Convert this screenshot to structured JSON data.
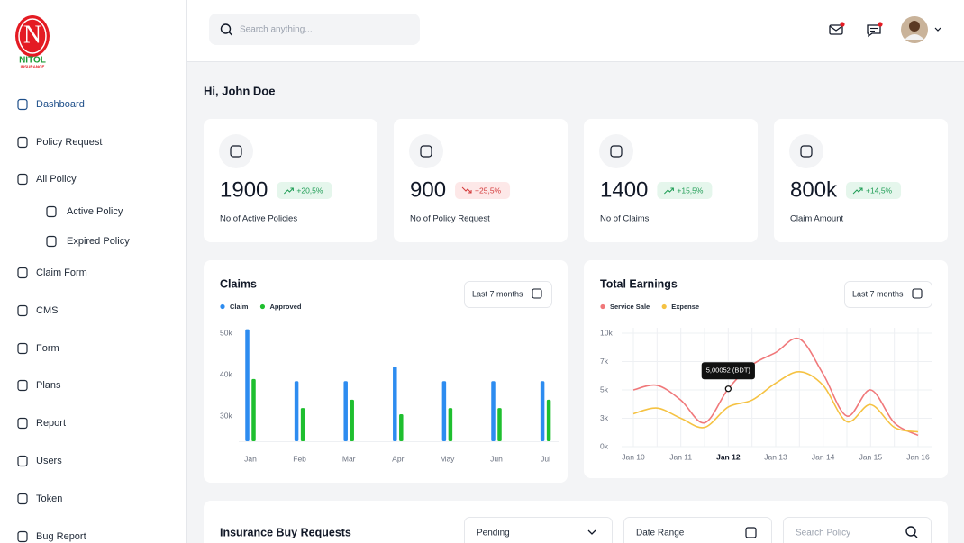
{
  "logo": {
    "mark": "N",
    "name": "NITOL",
    "tagline": "INSURANCE"
  },
  "sidebar": {
    "items": [
      {
        "label": "Dashboard",
        "active": true
      },
      {
        "label": "Policy Request"
      },
      {
        "label": "All Policy"
      },
      {
        "label": "Active Policy",
        "sub": true
      },
      {
        "label": "Expired Policy",
        "sub": true
      },
      {
        "label": "Claim Form"
      },
      {
        "label": "CMS"
      },
      {
        "label": "Form"
      },
      {
        "label": "Plans"
      },
      {
        "label": "Report"
      },
      {
        "label": "Users"
      },
      {
        "label": "Token"
      },
      {
        "label": "Bug Report"
      }
    ]
  },
  "header": {
    "search_placeholder": "Search anything..."
  },
  "greeting": "Hi, John Doe",
  "stats": [
    {
      "value": "1900",
      "change": "+20,5%",
      "trend": "up",
      "label": "No of Active Policies"
    },
    {
      "value": "900",
      "change": "+25,5%",
      "trend": "down",
      "label": "No of Policy Request"
    },
    {
      "value": "1400",
      "change": "+15,5%",
      "trend": "up",
      "label": "No of Claims"
    },
    {
      "value": "800k",
      "change": "+14,5%",
      "trend": "up",
      "label": "Claim Amount"
    }
  ],
  "chart_data": [
    {
      "type": "bar",
      "title": "Claims",
      "filter": "Last 7 months",
      "categories": [
        "Jan",
        "Feb",
        "Mar",
        "Apr",
        "May",
        "Jun",
        "Jul"
      ],
      "series": [
        {
          "name": "Claim",
          "color": "#2d8cf0",
          "values": [
            51000,
            38500,
            38500,
            42000,
            38500,
            38500,
            38500
          ]
        },
        {
          "name": "Approved",
          "color": "#1fbf2f",
          "values": [
            39000,
            32000,
            34000,
            30500,
            32000,
            32000,
            34000
          ]
        }
      ],
      "ylim": [
        24000,
        52000
      ],
      "yticks": [
        {
          "value": 30000,
          "label": "30k"
        },
        {
          "value": 40000,
          "label": "40k"
        },
        {
          "value": 50000,
          "label": "50k"
        }
      ],
      "grid": false
    },
    {
      "type": "line",
      "title": "Total Earnings",
      "filter": "Last 7 months",
      "categories": [
        "Jan 10",
        null,
        "Jan 11",
        null,
        "Jan 12",
        null,
        "Jan 13",
        null,
        "Jan 14",
        null,
        "Jan 15",
        null,
        "Jan 16"
      ],
      "series": [
        {
          "name": "Service Sale",
          "color": "#f0787a",
          "values": [
            5000,
            5400,
            4100,
            2100,
            5100,
            7200,
            8300,
            9500,
            6400,
            2700,
            5000,
            2100,
            1000
          ]
        },
        {
          "name": "Expense",
          "color": "#f5c242",
          "values": [
            2900,
            3400,
            2500,
            1700,
            3500,
            4100,
            5600,
            6600,
            5400,
            2200,
            3700,
            1700,
            1300
          ]
        }
      ],
      "ylim": [
        0,
        10000
      ],
      "yticks": [
        {
          "value": 0,
          "label": "0k"
        },
        {
          "value": 2500,
          "label": "3k"
        },
        {
          "value": 5000,
          "label": "5k"
        },
        {
          "value": 7500,
          "label": "7k"
        },
        {
          "value": 10000,
          "label": "10k"
        }
      ],
      "grid": true,
      "tooltip": {
        "label": "5,00052 (BDT)",
        "category": "Jan 12",
        "series": "Service Sale"
      }
    }
  ],
  "requests": {
    "title": "Insurance Buy Requests",
    "status": "Pending",
    "date_filter": "Date Range",
    "search_placeholder": "Search Policy"
  }
}
